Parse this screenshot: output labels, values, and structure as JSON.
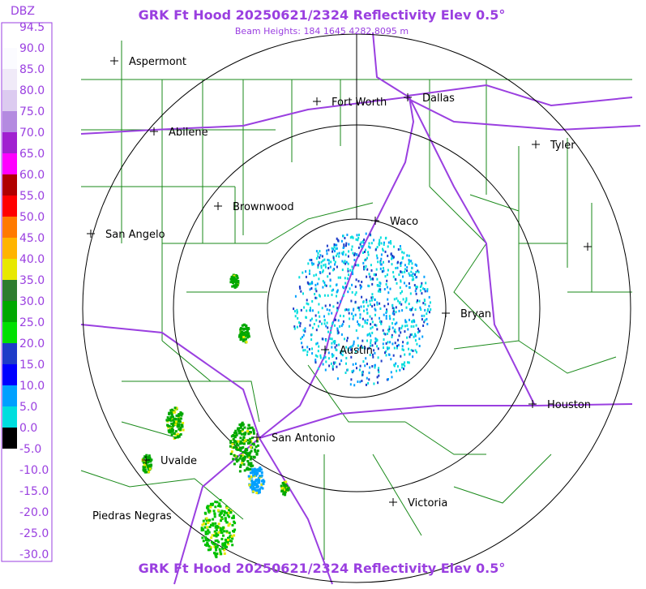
{
  "header": {
    "title": "GRK Ft Hood 20250621/2324 Reflectivity Elev 0.5°",
    "subtitle": "Beam Heights: 184 1645 4282 8095 m"
  },
  "footer": {
    "title": "GRK Ft Hood 20250621/2324 Reflectivity Elev 0.5°"
  },
  "legend": {
    "label": "DBZ",
    "values": [
      "94.5",
      "90.0",
      "85.0",
      "80.0",
      "75.0",
      "70.0",
      "65.0",
      "60.0",
      "55.0",
      "50.0",
      "45.0",
      "40.0",
      "35.0",
      "30.0",
      "25.0",
      "20.0",
      "15.0",
      "10.0",
      "5.0",
      "0.0",
      "-5.0",
      "-10.0",
      "-15.0",
      "-20.0",
      "-25.0",
      "-30.0"
    ],
    "colors": [
      "#ffffff",
      "#fbfbff",
      "#f0eaf8",
      "#dccbf0",
      "#b48ae0",
      "#a020d0",
      "#ff00ff",
      "#b00000",
      "#ff0000",
      "#ff7a00",
      "#ffb400",
      "#e8e800",
      "#2e7d2e",
      "#00a800",
      "#00e000",
      "#1e3cc8",
      "#0000ff",
      "#00a0ff",
      "#00dede",
      "#000000",
      "#ffffff",
      "#ffffff",
      "#ffffff",
      "#ffffff",
      "#ffffff"
    ]
  },
  "cities": [
    "Aspermont",
    "Abilene",
    "Fort Worth",
    "Dallas",
    "Tyler",
    "Brownwood",
    "Waco",
    "San Angelo",
    "Bryan",
    "Austin",
    "Houston",
    "San Antonio",
    "Uvalde",
    "Victoria",
    "Piedras Negras"
  ]
}
